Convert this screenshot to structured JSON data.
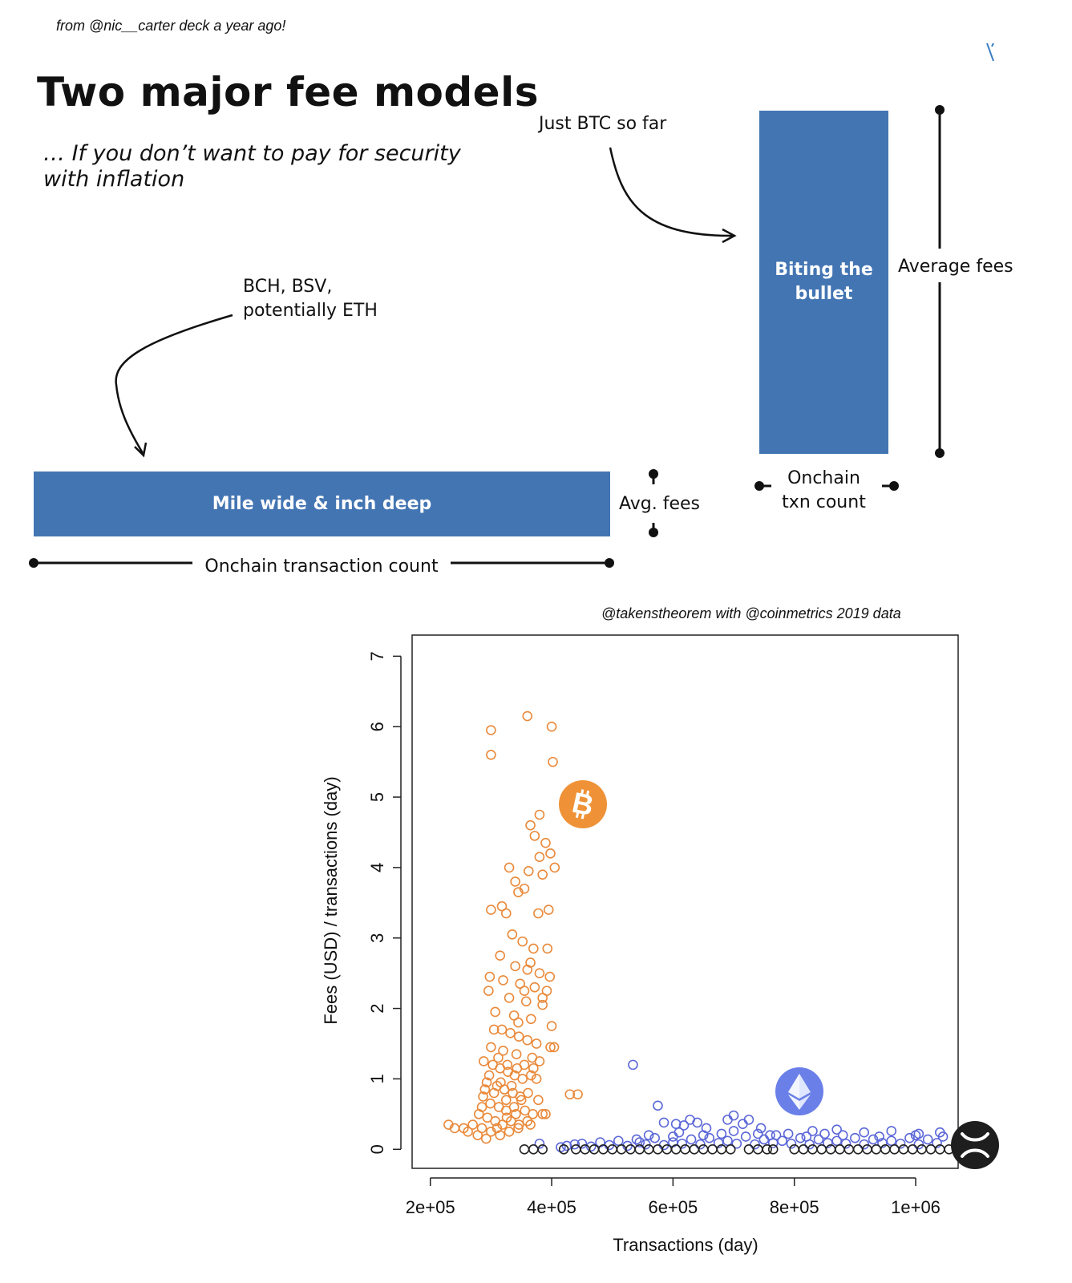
{
  "caption_top": "from @nic__carter deck a year ago!",
  "slide": {
    "title": "Two major fee models",
    "subtitle": "… If you don’t want to pay for security with inflation",
    "note_btc": "Just BTC so far",
    "note_bch": "BCH, BSV,\npotentially ETH",
    "block_tall": "Biting the\nbullet",
    "block_wide": "Mile wide & inch deep",
    "label_average_fees": "Average fees",
    "label_avg_fees": "Avg. fees",
    "label_onchain_txn": "Onchain\ntxn count",
    "label_onchain_transaction": "Onchain transaction count"
  },
  "credit": "@takenstheorem with @coinmetrics 2019 data",
  "icons": {
    "btc": "bitcoin-icon",
    "eth": "ethereum-icon",
    "xrp": "xrp-icon"
  },
  "colors": {
    "block": "#4375b3",
    "btc": "#e9893a",
    "eth": "#5b67d8",
    "xrp": "#222222"
  },
  "chart_data": {
    "type": "scatter",
    "xlabel": "Transactions (day)",
    "ylabel": "Fees (USD) / transactions (day)",
    "xlim": [
      170000,
      1070000
    ],
    "ylim": [
      -0.27,
      7.3
    ],
    "x_ticks": [
      200000,
      400000,
      600000,
      800000,
      1000000
    ],
    "x_tick_labels": [
      "2e+05",
      "4e+05",
      "6e+05",
      "8e+05",
      "1e+06"
    ],
    "y_ticks": [
      0,
      1,
      2,
      3,
      4,
      5,
      6,
      7
    ],
    "y_tick_labels": [
      "0",
      "1",
      "2",
      "3",
      "4",
      "5",
      "6",
      "7"
    ],
    "series": [
      {
        "color": "#e9893a",
        "points": [
          [
            300000,
            5.95
          ],
          [
            360000,
            6.15
          ],
          [
            400000,
            6.0
          ],
          [
            300000,
            5.6
          ],
          [
            402000,
            5.5
          ],
          [
            380000,
            4.75
          ],
          [
            365000,
            4.6
          ],
          [
            372000,
            4.45
          ],
          [
            390000,
            4.35
          ],
          [
            398000,
            4.2
          ],
          [
            380000,
            4.15
          ],
          [
            330000,
            4.0
          ],
          [
            362000,
            3.95
          ],
          [
            385000,
            3.9
          ],
          [
            405000,
            4.0
          ],
          [
            340000,
            3.8
          ],
          [
            355000,
            3.7
          ],
          [
            345000,
            3.65
          ],
          [
            300000,
            3.4
          ],
          [
            318000,
            3.45
          ],
          [
            325000,
            3.35
          ],
          [
            378000,
            3.35
          ],
          [
            395000,
            3.4
          ],
          [
            335000,
            3.05
          ],
          [
            352000,
            2.95
          ],
          [
            370000,
            2.85
          ],
          [
            393000,
            2.85
          ],
          [
            315000,
            2.75
          ],
          [
            340000,
            2.6
          ],
          [
            360000,
            2.55
          ],
          [
            380000,
            2.5
          ],
          [
            397000,
            2.45
          ],
          [
            298000,
            2.45
          ],
          [
            320000,
            2.4
          ],
          [
            348000,
            2.35
          ],
          [
            372000,
            2.3
          ],
          [
            392000,
            2.25
          ],
          [
            296000,
            2.25
          ],
          [
            330000,
            2.15
          ],
          [
            358000,
            2.1
          ],
          [
            385000,
            2.05
          ],
          [
            307000,
            1.95
          ],
          [
            338000,
            1.9
          ],
          [
            366000,
            1.85
          ],
          [
            400000,
            1.75
          ],
          [
            305000,
            1.7
          ],
          [
            318000,
            1.7
          ],
          [
            332000,
            1.65
          ],
          [
            346000,
            1.6
          ],
          [
            360000,
            1.55
          ],
          [
            375000,
            1.5
          ],
          [
            398000,
            1.45
          ],
          [
            404000,
            1.45
          ],
          [
            300000,
            1.45
          ],
          [
            320000,
            1.4
          ],
          [
            342000,
            1.35
          ],
          [
            368000,
            1.3
          ],
          [
            380000,
            1.25
          ],
          [
            288000,
            1.25
          ],
          [
            303000,
            1.2
          ],
          [
            315000,
            1.15
          ],
          [
            328000,
            1.1
          ],
          [
            339000,
            1.05
          ],
          [
            352000,
            1.0
          ],
          [
            366000,
            1.05
          ],
          [
            375000,
            1.0
          ],
          [
            293000,
            0.95
          ],
          [
            310000,
            0.9
          ],
          [
            322000,
            0.85
          ],
          [
            336000,
            0.8
          ],
          [
            348000,
            0.75
          ],
          [
            361000,
            0.8
          ],
          [
            378000,
            0.7
          ],
          [
            287000,
            0.75
          ],
          [
            299000,
            0.65
          ],
          [
            313000,
            0.6
          ],
          [
            325000,
            0.55
          ],
          [
            341000,
            0.5
          ],
          [
            356000,
            0.55
          ],
          [
            369000,
            0.5
          ],
          [
            385000,
            0.5
          ],
          [
            280000,
            0.5
          ],
          [
            294000,
            0.45
          ],
          [
            307000,
            0.4
          ],
          [
            319000,
            0.35
          ],
          [
            333000,
            0.4
          ],
          [
            346000,
            0.35
          ],
          [
            360000,
            0.4
          ],
          [
            270000,
            0.35
          ],
          [
            255000,
            0.3
          ],
          [
            240000,
            0.3
          ],
          [
            230000,
            0.35
          ],
          [
            262000,
            0.25
          ],
          [
            285000,
            0.3
          ],
          [
            300000,
            0.25
          ],
          [
            315000,
            0.2
          ],
          [
            330000,
            0.25
          ],
          [
            345000,
            0.3
          ],
          [
            365000,
            0.35
          ],
          [
            278000,
            0.2
          ],
          [
            292000,
            0.15
          ],
          [
            310000,
            0.3
          ],
          [
            326000,
            0.45
          ],
          [
            338000,
            0.6
          ],
          [
            350000,
            0.7
          ],
          [
            305000,
            0.8
          ],
          [
            316000,
            0.95
          ],
          [
            327000,
            1.2
          ],
          [
            297000,
            1.05
          ],
          [
            312000,
            1.3
          ],
          [
            325000,
            0.7
          ],
          [
            334000,
            0.9
          ],
          [
            343000,
            1.15
          ],
          [
            355000,
            1.2
          ],
          [
            370000,
            1.15
          ],
          [
            285000,
            0.6
          ],
          [
            290000,
            0.85
          ],
          [
            345000,
            1.8
          ],
          [
            355000,
            2.25
          ],
          [
            365000,
            2.65
          ],
          [
            385000,
            2.15
          ],
          [
            430000,
            0.78
          ],
          [
            443000,
            0.78
          ],
          [
            390000,
            0.5
          ]
        ]
      },
      {
        "color": "#5b67d8",
        "points": [
          [
            534000,
            1.2
          ],
          [
            575000,
            0.62
          ],
          [
            628000,
            0.42
          ],
          [
            640000,
            0.38
          ],
          [
            585000,
            0.38
          ],
          [
            605000,
            0.36
          ],
          [
            618000,
            0.34
          ],
          [
            655000,
            0.3
          ],
          [
            690000,
            0.42
          ],
          [
            700000,
            0.48
          ],
          [
            725000,
            0.42
          ],
          [
            715000,
            0.36
          ],
          [
            745000,
            0.3
          ],
          [
            680000,
            0.22
          ],
          [
            760000,
            0.2
          ],
          [
            790000,
            0.22
          ],
          [
            830000,
            0.26
          ],
          [
            870000,
            0.28
          ],
          [
            915000,
            0.24
          ],
          [
            960000,
            0.26
          ],
          [
            1005000,
            0.22
          ],
          [
            1040000,
            0.24
          ],
          [
            450000,
            0.08
          ],
          [
            480000,
            0.1
          ],
          [
            510000,
            0.12
          ],
          [
            540000,
            0.14
          ],
          [
            570000,
            0.16
          ],
          [
            600000,
            0.18
          ],
          [
            630000,
            0.14
          ],
          [
            660000,
            0.16
          ],
          [
            690000,
            0.12
          ],
          [
            720000,
            0.18
          ],
          [
            750000,
            0.14
          ],
          [
            780000,
            0.12
          ],
          [
            810000,
            0.16
          ],
          [
            840000,
            0.14
          ],
          [
            870000,
            0.12
          ],
          [
            900000,
            0.16
          ],
          [
            930000,
            0.14
          ],
          [
            960000,
            0.12
          ],
          [
            990000,
            0.16
          ],
          [
            1020000,
            0.14
          ],
          [
            465000,
            0.04
          ],
          [
            495000,
            0.06
          ],
          [
            525000,
            0.05
          ],
          [
            555000,
            0.07
          ],
          [
            585000,
            0.06
          ],
          [
            615000,
            0.08
          ],
          [
            645000,
            0.07
          ],
          [
            675000,
            0.09
          ],
          [
            705000,
            0.08
          ],
          [
            735000,
            0.07
          ],
          [
            765000,
            0.09
          ],
          [
            795000,
            0.08
          ],
          [
            825000,
            0.07
          ],
          [
            855000,
            0.09
          ],
          [
            885000,
            0.08
          ],
          [
            915000,
            0.07
          ],
          [
            945000,
            0.09
          ],
          [
            975000,
            0.08
          ],
          [
            1005000,
            0.07
          ],
          [
            1035000,
            0.09
          ],
          [
            425000,
            0.05
          ],
          [
            438000,
            0.07
          ],
          [
            415000,
            0.03
          ],
          [
            380000,
            0.08
          ],
          [
            610000,
            0.24
          ],
          [
            650000,
            0.2
          ],
          [
            700000,
            0.26
          ],
          [
            740000,
            0.22
          ],
          [
            820000,
            0.18
          ],
          [
            880000,
            0.2
          ],
          [
            940000,
            0.18
          ],
          [
            1000000,
            0.2
          ],
          [
            1045000,
            0.18
          ],
          [
            560000,
            0.2
          ],
          [
            545000,
            0.1
          ],
          [
            600000,
            0.1
          ],
          [
            770000,
            0.2
          ],
          [
            850000,
            0.22
          ]
        ]
      },
      {
        "color": "#222222",
        "points": [
          [
            355000,
            0.0
          ],
          [
            370000,
            0.0
          ],
          [
            385000,
            0.0
          ],
          [
            420000,
            0.0
          ],
          [
            440000,
            0.0
          ],
          [
            455000,
            0.0
          ],
          [
            470000,
            0.0
          ],
          [
            485000,
            0.0
          ],
          [
            500000,
            0.0
          ],
          [
            515000,
            0.0
          ],
          [
            530000,
            0.0
          ],
          [
            545000,
            0.0
          ],
          [
            560000,
            0.0
          ],
          [
            575000,
            0.0
          ],
          [
            590000,
            0.0
          ],
          [
            605000,
            0.0
          ],
          [
            620000,
            0.0
          ],
          [
            635000,
            0.0
          ],
          [
            650000,
            0.0
          ],
          [
            665000,
            0.0
          ],
          [
            680000,
            0.0
          ],
          [
            695000,
            0.0
          ],
          [
            725000,
            0.0
          ],
          [
            740000,
            0.0
          ],
          [
            755000,
            0.0
          ],
          [
            765000,
            0.0
          ],
          [
            800000,
            0.0
          ],
          [
            815000,
            0.0
          ],
          [
            830000,
            0.0
          ],
          [
            845000,
            0.0
          ],
          [
            860000,
            0.0
          ],
          [
            875000,
            0.0
          ],
          [
            890000,
            0.0
          ],
          [
            905000,
            0.0
          ],
          [
            920000,
            0.0
          ],
          [
            935000,
            0.0
          ],
          [
            950000,
            0.0
          ],
          [
            965000,
            0.0
          ],
          [
            980000,
            0.0
          ],
          [
            995000,
            0.0
          ],
          [
            1010000,
            0.0
          ],
          [
            1025000,
            0.0
          ],
          [
            1040000,
            0.0
          ],
          [
            1055000,
            0.0
          ]
        ]
      }
    ]
  }
}
